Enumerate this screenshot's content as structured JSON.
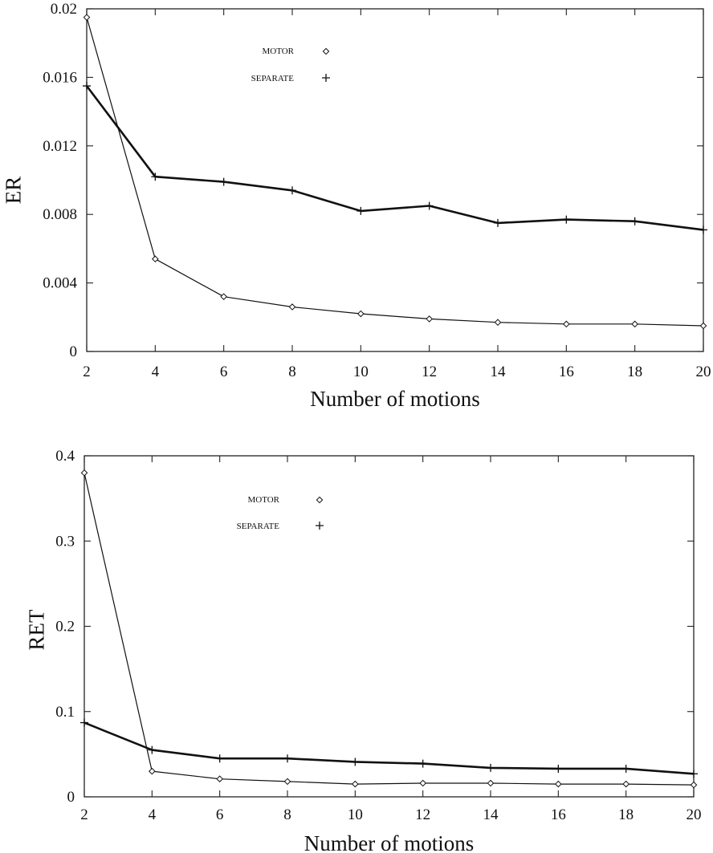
{
  "chart_data": [
    {
      "type": "line",
      "xlabel": "Number of motions",
      "ylabel": "ER",
      "xlim": [
        2,
        20
      ],
      "ylim": [
        0,
        0.02
      ],
      "xticks": [
        2,
        4,
        6,
        8,
        10,
        12,
        14,
        16,
        18,
        20
      ],
      "yticks": [
        0,
        0.004,
        0.008,
        0.012,
        0.016,
        0.02
      ],
      "ytick_labels": [
        "0",
        "0.004",
        "0.008",
        "0.012",
        "0.016",
        "0.02"
      ],
      "x": [
        2,
        4,
        6,
        8,
        10,
        12,
        14,
        16,
        18,
        20
      ],
      "legend": "top-center",
      "series": [
        {
          "name": "MOTOR",
          "marker": "diamond",
          "line_weight": "thin",
          "color": "#111111",
          "values": [
            0.0195,
            0.0054,
            0.0032,
            0.0026,
            0.0022,
            0.0019,
            0.0017,
            0.0016,
            0.0016,
            0.0015
          ]
        },
        {
          "name": "SEPARATE",
          "marker": "plus",
          "line_weight": "thick",
          "color": "#111111",
          "values": [
            0.0155,
            0.0102,
            0.0099,
            0.0094,
            0.0082,
            0.0085,
            0.0075,
            0.0077,
            0.0076,
            0.0071
          ]
        }
      ]
    },
    {
      "type": "line",
      "xlabel": "Number of motions",
      "ylabel": "RET",
      "xlim": [
        2,
        20
      ],
      "ylim": [
        0,
        0.4
      ],
      "xticks": [
        2,
        4,
        6,
        8,
        10,
        12,
        14,
        16,
        18,
        20
      ],
      "yticks": [
        0,
        0.1,
        0.2,
        0.3,
        0.4
      ],
      "ytick_labels": [
        "0",
        "0.1",
        "0.2",
        "0.3",
        "0.4"
      ],
      "x": [
        2,
        4,
        6,
        8,
        10,
        12,
        14,
        16,
        18,
        20
      ],
      "legend": "top-center",
      "series": [
        {
          "name": "MOTOR",
          "marker": "diamond",
          "line_weight": "thin",
          "color": "#111111",
          "values": [
            0.38,
            0.03,
            0.021,
            0.018,
            0.015,
            0.016,
            0.016,
            0.015,
            0.015,
            0.014
          ]
        },
        {
          "name": "SEPARATE",
          "marker": "plus",
          "line_weight": "thick",
          "color": "#111111",
          "values": [
            0.087,
            0.055,
            0.045,
            0.045,
            0.041,
            0.039,
            0.034,
            0.033,
            0.033,
            0.027
          ]
        }
      ]
    }
  ]
}
